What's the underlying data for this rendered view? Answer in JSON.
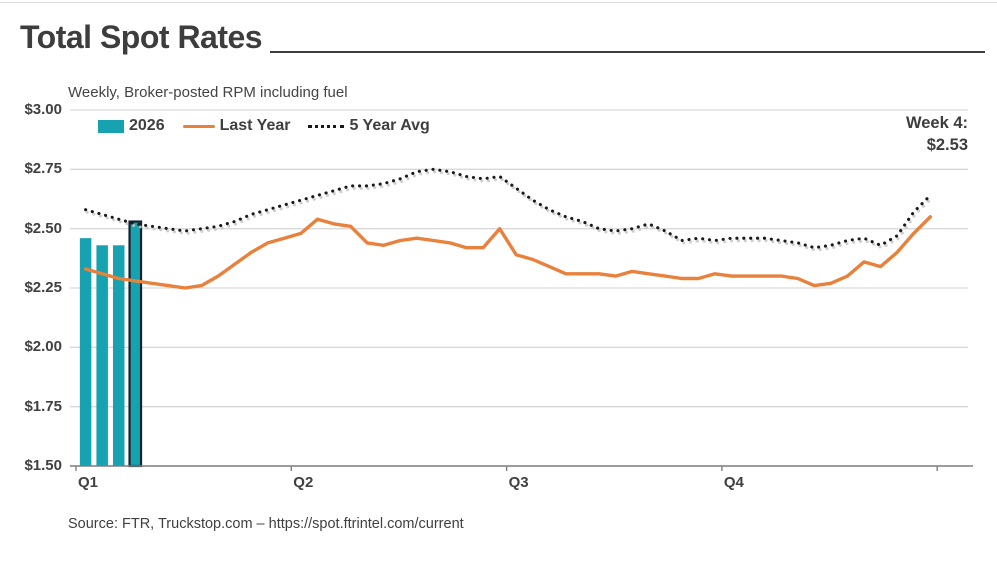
{
  "header": {
    "title": "Total Spot Rates"
  },
  "chart_data": {
    "type": "bar+line",
    "title": "Total Spot Rates",
    "subtitle": "Weekly, Broker-posted RPM including fuel",
    "x_unit": "week of year",
    "weeks": 52,
    "x_tick_labels": [
      "Q1",
      "Q2",
      "Q3",
      "Q4"
    ],
    "y_ticks": [
      "$3.00",
      "$2.75",
      "$2.50",
      "$2.25",
      "$2.00",
      "$1.75",
      "$1.50"
    ],
    "y_tick_values": [
      3.0,
      2.75,
      2.5,
      2.25,
      2.0,
      1.75,
      1.5
    ],
    "ylim": [
      1.5,
      3.0
    ],
    "grid": true,
    "legend_position": "top-left",
    "series": [
      {
        "name": "2026",
        "type": "bar",
        "color": "#16a2b0",
        "highlight_outline": "#16212e",
        "weeks": [
          1,
          2,
          3,
          4
        ],
        "values": [
          2.46,
          2.43,
          2.43,
          2.53
        ],
        "highlight_week": 4
      },
      {
        "name": "Last Year",
        "type": "line",
        "color": "#e8813c",
        "values": [
          2.33,
          2.31,
          2.29,
          2.28,
          2.27,
          2.26,
          2.25,
          2.26,
          2.3,
          2.35,
          2.4,
          2.44,
          2.46,
          2.48,
          2.54,
          2.52,
          2.51,
          2.44,
          2.43,
          2.45,
          2.46,
          2.45,
          2.44,
          2.42,
          2.42,
          2.5,
          2.39,
          2.37,
          2.34,
          2.31,
          2.31,
          2.31,
          2.3,
          2.32,
          2.31,
          2.3,
          2.29,
          2.29,
          2.31,
          2.3,
          2.3,
          2.3,
          2.3,
          2.29,
          2.26,
          2.27,
          2.3,
          2.36,
          2.34,
          2.4,
          2.48,
          2.55
        ]
      },
      {
        "name": "5 Year Avg",
        "type": "dotted-line",
        "color": "#1a1a1a",
        "shadow_color": "#c6c6c6",
        "values": [
          2.58,
          2.56,
          2.54,
          2.52,
          2.51,
          2.5,
          2.49,
          2.5,
          2.51,
          2.53,
          2.56,
          2.58,
          2.6,
          2.62,
          2.64,
          2.66,
          2.68,
          2.68,
          2.69,
          2.71,
          2.74,
          2.75,
          2.74,
          2.72,
          2.71,
          2.72,
          2.67,
          2.62,
          2.58,
          2.55,
          2.53,
          2.5,
          2.49,
          2.5,
          2.52,
          2.49,
          2.45,
          2.46,
          2.45,
          2.46,
          2.46,
          2.46,
          2.45,
          2.44,
          2.42,
          2.43,
          2.45,
          2.46,
          2.43,
          2.47,
          2.57,
          2.64
        ]
      }
    ],
    "annotation": {
      "label": "Week 4:",
      "value": "$2.53"
    }
  },
  "footer": {
    "source": "Source: FTR, Truckstop.com – https://spot.ftrintel.com/current"
  },
  "colors": {
    "bar_teal": "#16a2b0",
    "line_orange": "#e8813c",
    "dotted_black": "#1a1a1a",
    "gridline": "#d9d9d9",
    "axis": "#7f7f7f",
    "text": "#3f3f3f"
  }
}
